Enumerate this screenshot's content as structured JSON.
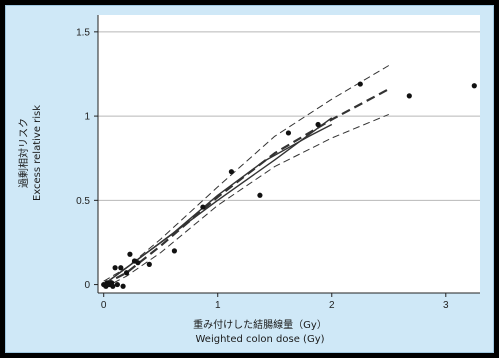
{
  "chart_data": {
    "type": "scatter",
    "title": "",
    "xlabel_jp": "重み付けした結腸線量（Gy）",
    "xlabel": "Weighted colon dose (Gy)",
    "ylabel_jp": "過剰相対リスク",
    "ylabel": "Excess relative risk",
    "xlim": [
      -0.05,
      3.3
    ],
    "ylim": [
      -0.05,
      1.6
    ],
    "x_ticks": [
      0,
      1,
      2,
      3
    ],
    "x_tick_labels": [
      "0",
      "1",
      "2",
      "3"
    ],
    "y_ticks": [
      0,
      0.5,
      1,
      1.5
    ],
    "y_tick_labels": [
      "0",
      "0.5",
      "1",
      "1.5"
    ],
    "grid": "horizontal",
    "points": [
      {
        "x": 0.0,
        "y": 0.0
      },
      {
        "x": 0.02,
        "y": -0.01
      },
      {
        "x": 0.03,
        "y": 0.01
      },
      {
        "x": 0.05,
        "y": 0.0
      },
      {
        "x": 0.07,
        "y": 0.01
      },
      {
        "x": 0.08,
        "y": -0.01
      },
      {
        "x": 0.1,
        "y": 0.1
      },
      {
        "x": 0.12,
        "y": 0.0
      },
      {
        "x": 0.15,
        "y": 0.1
      },
      {
        "x": 0.17,
        "y": -0.01
      },
      {
        "x": 0.2,
        "y": 0.07
      },
      {
        "x": 0.23,
        "y": 0.18
      },
      {
        "x": 0.27,
        "y": 0.14
      },
      {
        "x": 0.3,
        "y": 0.13
      },
      {
        "x": 0.4,
        "y": 0.12
      },
      {
        "x": 0.62,
        "y": 0.2
      },
      {
        "x": 0.87,
        "y": 0.46
      },
      {
        "x": 1.12,
        "y": 0.67
      },
      {
        "x": 1.37,
        "y": 0.53
      },
      {
        "x": 1.62,
        "y": 0.9
      },
      {
        "x": 1.88,
        "y": 0.95
      },
      {
        "x": 2.25,
        "y": 1.19
      },
      {
        "x": 2.68,
        "y": 1.12
      },
      {
        "x": 3.25,
        "y": 1.18
      }
    ],
    "curves": [
      {
        "style": "solid",
        "x": [
          0,
          0.5,
          1,
          1.5,
          2
        ],
        "y": [
          0,
          0.25,
          0.5,
          0.74,
          0.99
        ]
      },
      {
        "style": "solid",
        "x": [
          0,
          0.3,
          0.6,
          1.0,
          1.4,
          1.8,
          2.0
        ],
        "y": [
          0,
          0.15,
          0.3,
          0.53,
          0.73,
          0.88,
          0.95
        ]
      },
      {
        "style": "dashed-thick",
        "x": [
          0,
          0.2,
          0.5,
          1.0,
          1.5,
          2.0,
          2.5
        ],
        "y": [
          0,
          0.07,
          0.23,
          0.52,
          0.78,
          0.98,
          1.16
        ]
      },
      {
        "style": "dashed-thin",
        "x": [
          0,
          0.2,
          0.5,
          1.0,
          1.5,
          2.0,
          2.5
        ],
        "y": [
          0.02,
          0.1,
          0.27,
          0.58,
          0.88,
          1.1,
          1.3
        ]
      },
      {
        "style": "dashed-thin",
        "x": [
          0,
          0.2,
          0.5,
          1.0,
          1.5,
          2.0,
          2.5
        ],
        "y": [
          -0.02,
          0.05,
          0.19,
          0.47,
          0.7,
          0.87,
          1.01
        ]
      }
    ],
    "colors": {
      "background": "#cfe8f7",
      "plot_area": "#ffffff",
      "grid": "#b8b8b8",
      "axis": "#222222",
      "points": "#111111",
      "curve": "#333333"
    }
  }
}
